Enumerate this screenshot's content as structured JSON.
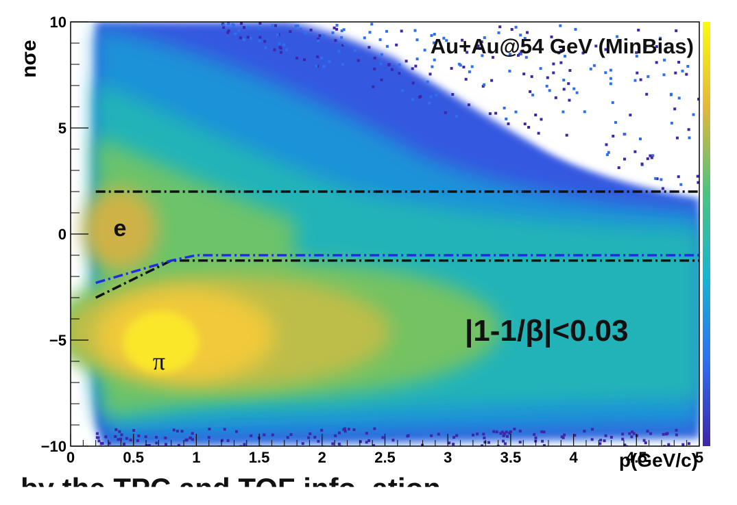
{
  "chart_data": {
    "type": "heatmap",
    "title": "Au+Au@54 GeV (MinBias)",
    "xlabel": "p(GeV/c)",
    "ylabel": "nσe",
    "xlim": [
      0,
      5
    ],
    "ylim": [
      -10,
      10
    ],
    "x_ticks": [
      "0",
      "0.5",
      "1",
      "1.5",
      "2",
      "2.5",
      "3",
      "3.5",
      "4",
      "4.5",
      "5"
    ],
    "y_ticks": [
      "−10",
      "−5",
      "0",
      "5",
      "10"
    ],
    "colormap": "parula",
    "colorbar": true,
    "bands": [
      {
        "label": "e",
        "center_p": 0.35,
        "center_nsigma": 0.0
      },
      {
        "label": "π",
        "center_p": 0.65,
        "center_nsigma": -5.0
      }
    ],
    "cut_text": "|1-1/β|<0.03",
    "cut_lines": [
      {
        "name": "upper",
        "color": "#111111",
        "points": [
          [
            0.2,
            2.0
          ],
          [
            5.0,
            2.0
          ]
        ]
      },
      {
        "name": "lower-black",
        "color": "#111111",
        "points": [
          [
            0.2,
            -3.0
          ],
          [
            0.8,
            -1.25
          ],
          [
            5.0,
            -1.25
          ]
        ]
      },
      {
        "name": "lower-blue",
        "color": "#1f2ee0",
        "points": [
          [
            0.2,
            -2.3
          ],
          [
            0.8,
            -1.25
          ],
          [
            1.0,
            -1.0
          ],
          [
            5.0,
            -1.0
          ]
        ]
      }
    ],
    "grid": false
  },
  "caption_fragment": "by the TPC and TOF info. ation"
}
